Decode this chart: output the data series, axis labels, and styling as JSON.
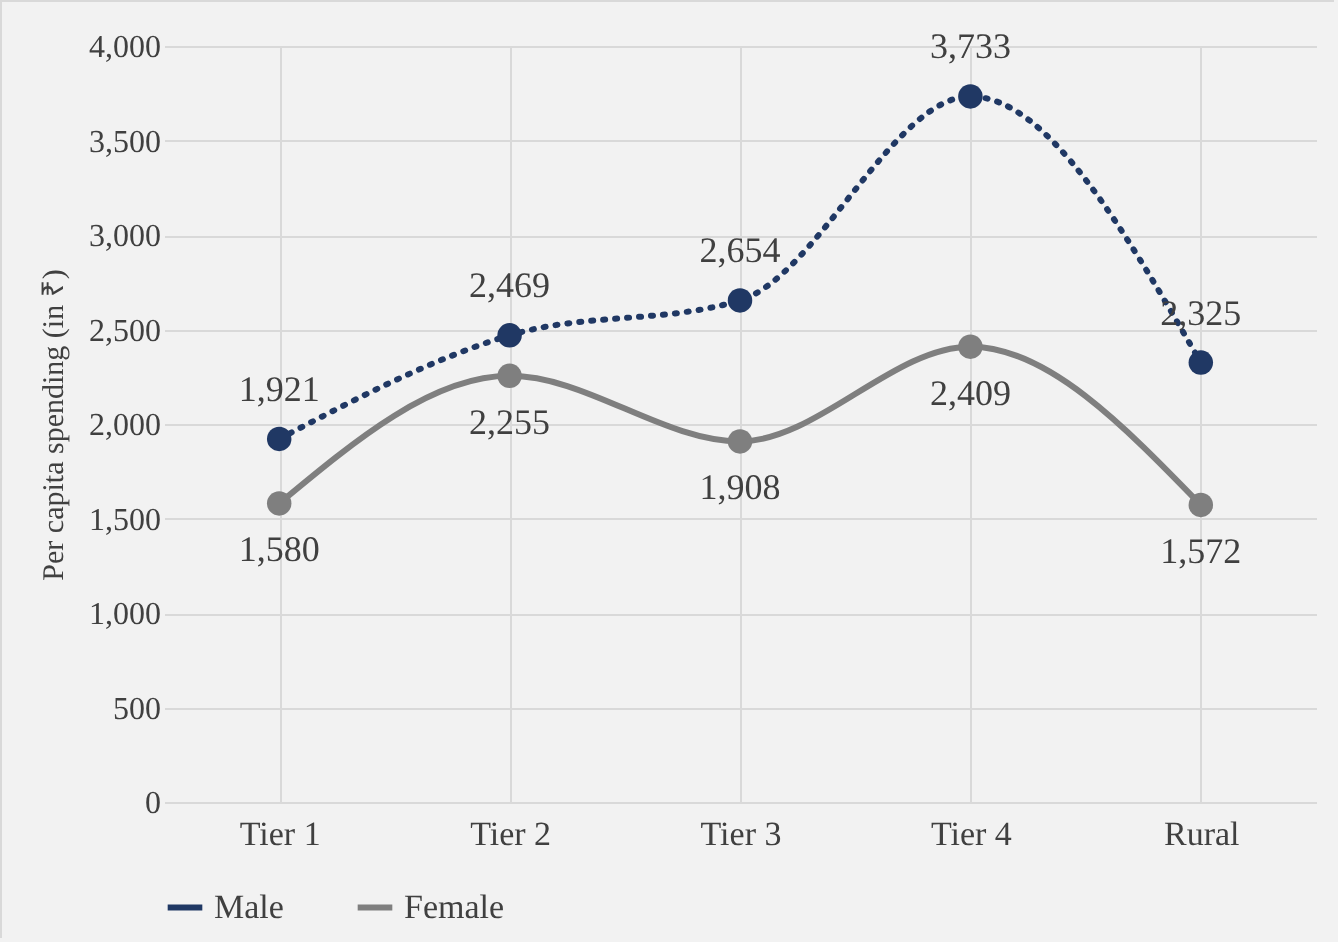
{
  "chart_data": {
    "type": "line",
    "ylabel": "Per capita spending (in ₹)",
    "categories": [
      "Tier 1",
      "Tier 2",
      "Tier 3",
      "Tier 4",
      "Rural"
    ],
    "series": [
      {
        "name": "Male",
        "color": "#203864",
        "line_style": "dotted",
        "values": [
          1921,
          2469,
          2654,
          3733,
          2325
        ],
        "value_labels": [
          "1,921",
          "2,469",
          "2,654",
          "3,733",
          "2,325"
        ]
      },
      {
        "name": "Female",
        "color": "#7f7f7f",
        "line_style": "solid",
        "values": [
          1580,
          2255,
          1908,
          2409,
          1572
        ],
        "value_labels": [
          "1,580",
          "2,255",
          "1,908",
          "2,409",
          "1,572"
        ]
      }
    ],
    "ylim": [
      0,
      4000
    ],
    "yticks": [
      {
        "value": 0,
        "label": "0"
      },
      {
        "value": 500,
        "label": "500"
      },
      {
        "value": 1000,
        "label": "1,000"
      },
      {
        "value": 1500,
        "label": "1,500"
      },
      {
        "value": 2000,
        "label": "2,000"
      },
      {
        "value": 2500,
        "label": "2,500"
      },
      {
        "value": 3000,
        "label": "3,000"
      },
      {
        "value": 3500,
        "label": "3,500"
      },
      {
        "value": 4000,
        "label": "4,000"
      }
    ],
    "grid": true,
    "legend": "bottom",
    "marker": "circle"
  }
}
